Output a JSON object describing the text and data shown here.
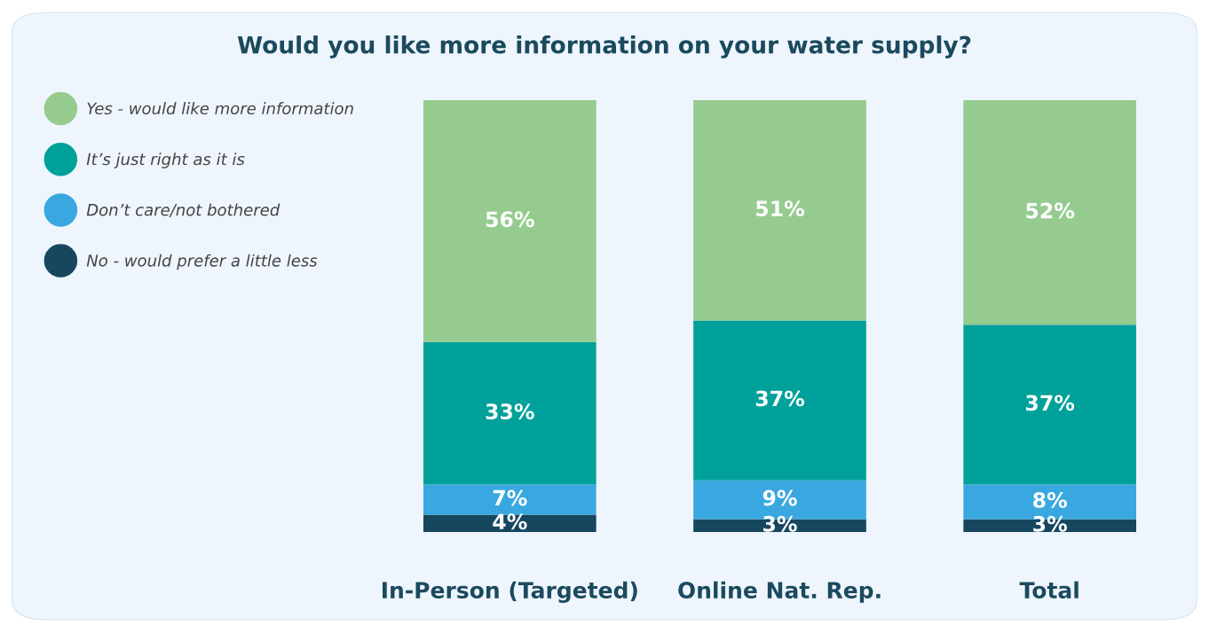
{
  "chart_data": {
    "type": "bar",
    "title": "Would you like more information on your water supply?",
    "categories": [
      "In-Person (Targeted)",
      "Online Nat. Rep.",
      "Total"
    ],
    "stacked": true,
    "legend": "left",
    "grid": false,
    "marker": "circle",
    "series": [
      {
        "name": "No - would prefer a little less",
        "color": "#16475f",
        "values": [
          4,
          3,
          3
        ],
        "value_labels": [
          "4%",
          "3%",
          "3%"
        ]
      },
      {
        "name": "Don’t care/not bothered",
        "color": "#3aa8e0",
        "values": [
          7,
          9,
          8
        ],
        "value_labels": [
          "7%",
          "9%",
          "8%"
        ]
      },
      {
        "name": "It’s just right as it is",
        "color": "#00a19a",
        "values": [
          33,
          37,
          37
        ],
        "value_labels": [
          "33%",
          "37%",
          "37%"
        ]
      },
      {
        "name": "Yes - would like more information",
        "color": "#95cb8f",
        "values": [
          56,
          51,
          52
        ],
        "value_labels": [
          "56%",
          "51%",
          "52%"
        ]
      }
    ]
  }
}
